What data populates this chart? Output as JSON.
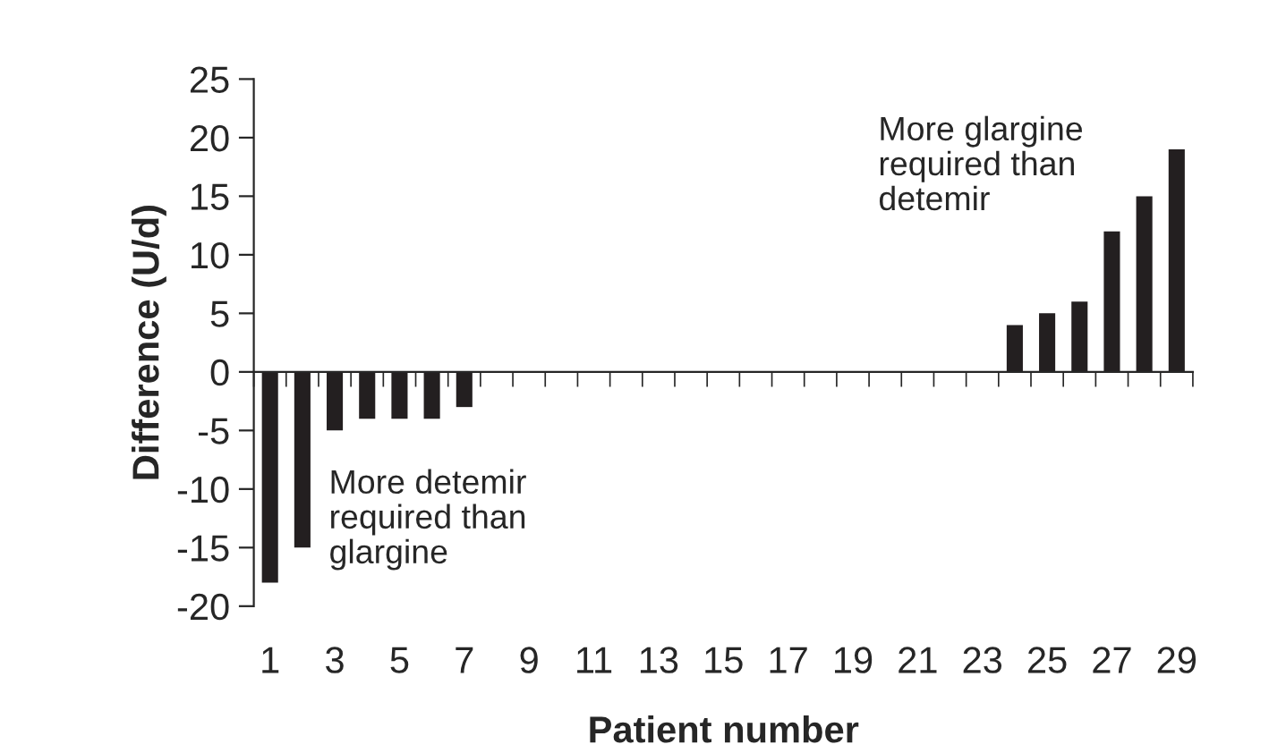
{
  "chart_data": {
    "type": "bar",
    "xlabel": "Patient number",
    "ylabel": "Difference (U/d)",
    "categories": [
      "1",
      null,
      "3",
      null,
      "5",
      null,
      "7",
      null,
      "9",
      null,
      "11",
      null,
      "13",
      null,
      "15",
      null,
      "17",
      null,
      "19",
      null,
      "21",
      null,
      "23",
      null,
      "25",
      null,
      "27",
      null,
      "29"
    ],
    "values": [
      -18,
      -15,
      -5,
      -4,
      -4,
      -4,
      -3,
      0,
      0,
      0,
      0,
      0,
      0,
      0,
      0,
      0,
      0,
      0,
      0,
      0,
      0,
      0,
      0,
      4,
      5,
      6,
      12,
      15,
      19
    ],
    "color": "#231f20",
    "ylim": [
      -20,
      25
    ],
    "yticks": [
      -20,
      -15,
      -10,
      -5,
      0,
      5,
      10,
      15,
      20,
      25
    ],
    "annotations": [
      "More detemir\nrequired than\nglargine",
      "More glargine\nrequired than\ndetemir"
    ],
    "legend": false
  }
}
